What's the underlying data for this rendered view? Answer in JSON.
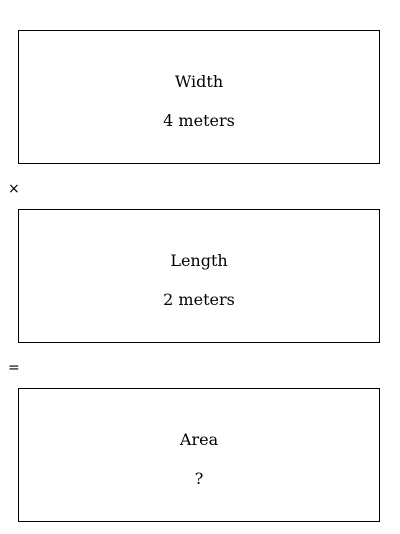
{
  "boxes": {
    "width": {
      "title": "Width",
      "value": "4 meters"
    },
    "length": {
      "title": "Length",
      "value": "2 meters"
    },
    "area": {
      "title": "Area",
      "value": "?"
    }
  },
  "operators": {
    "times": "×",
    "equals": "="
  }
}
